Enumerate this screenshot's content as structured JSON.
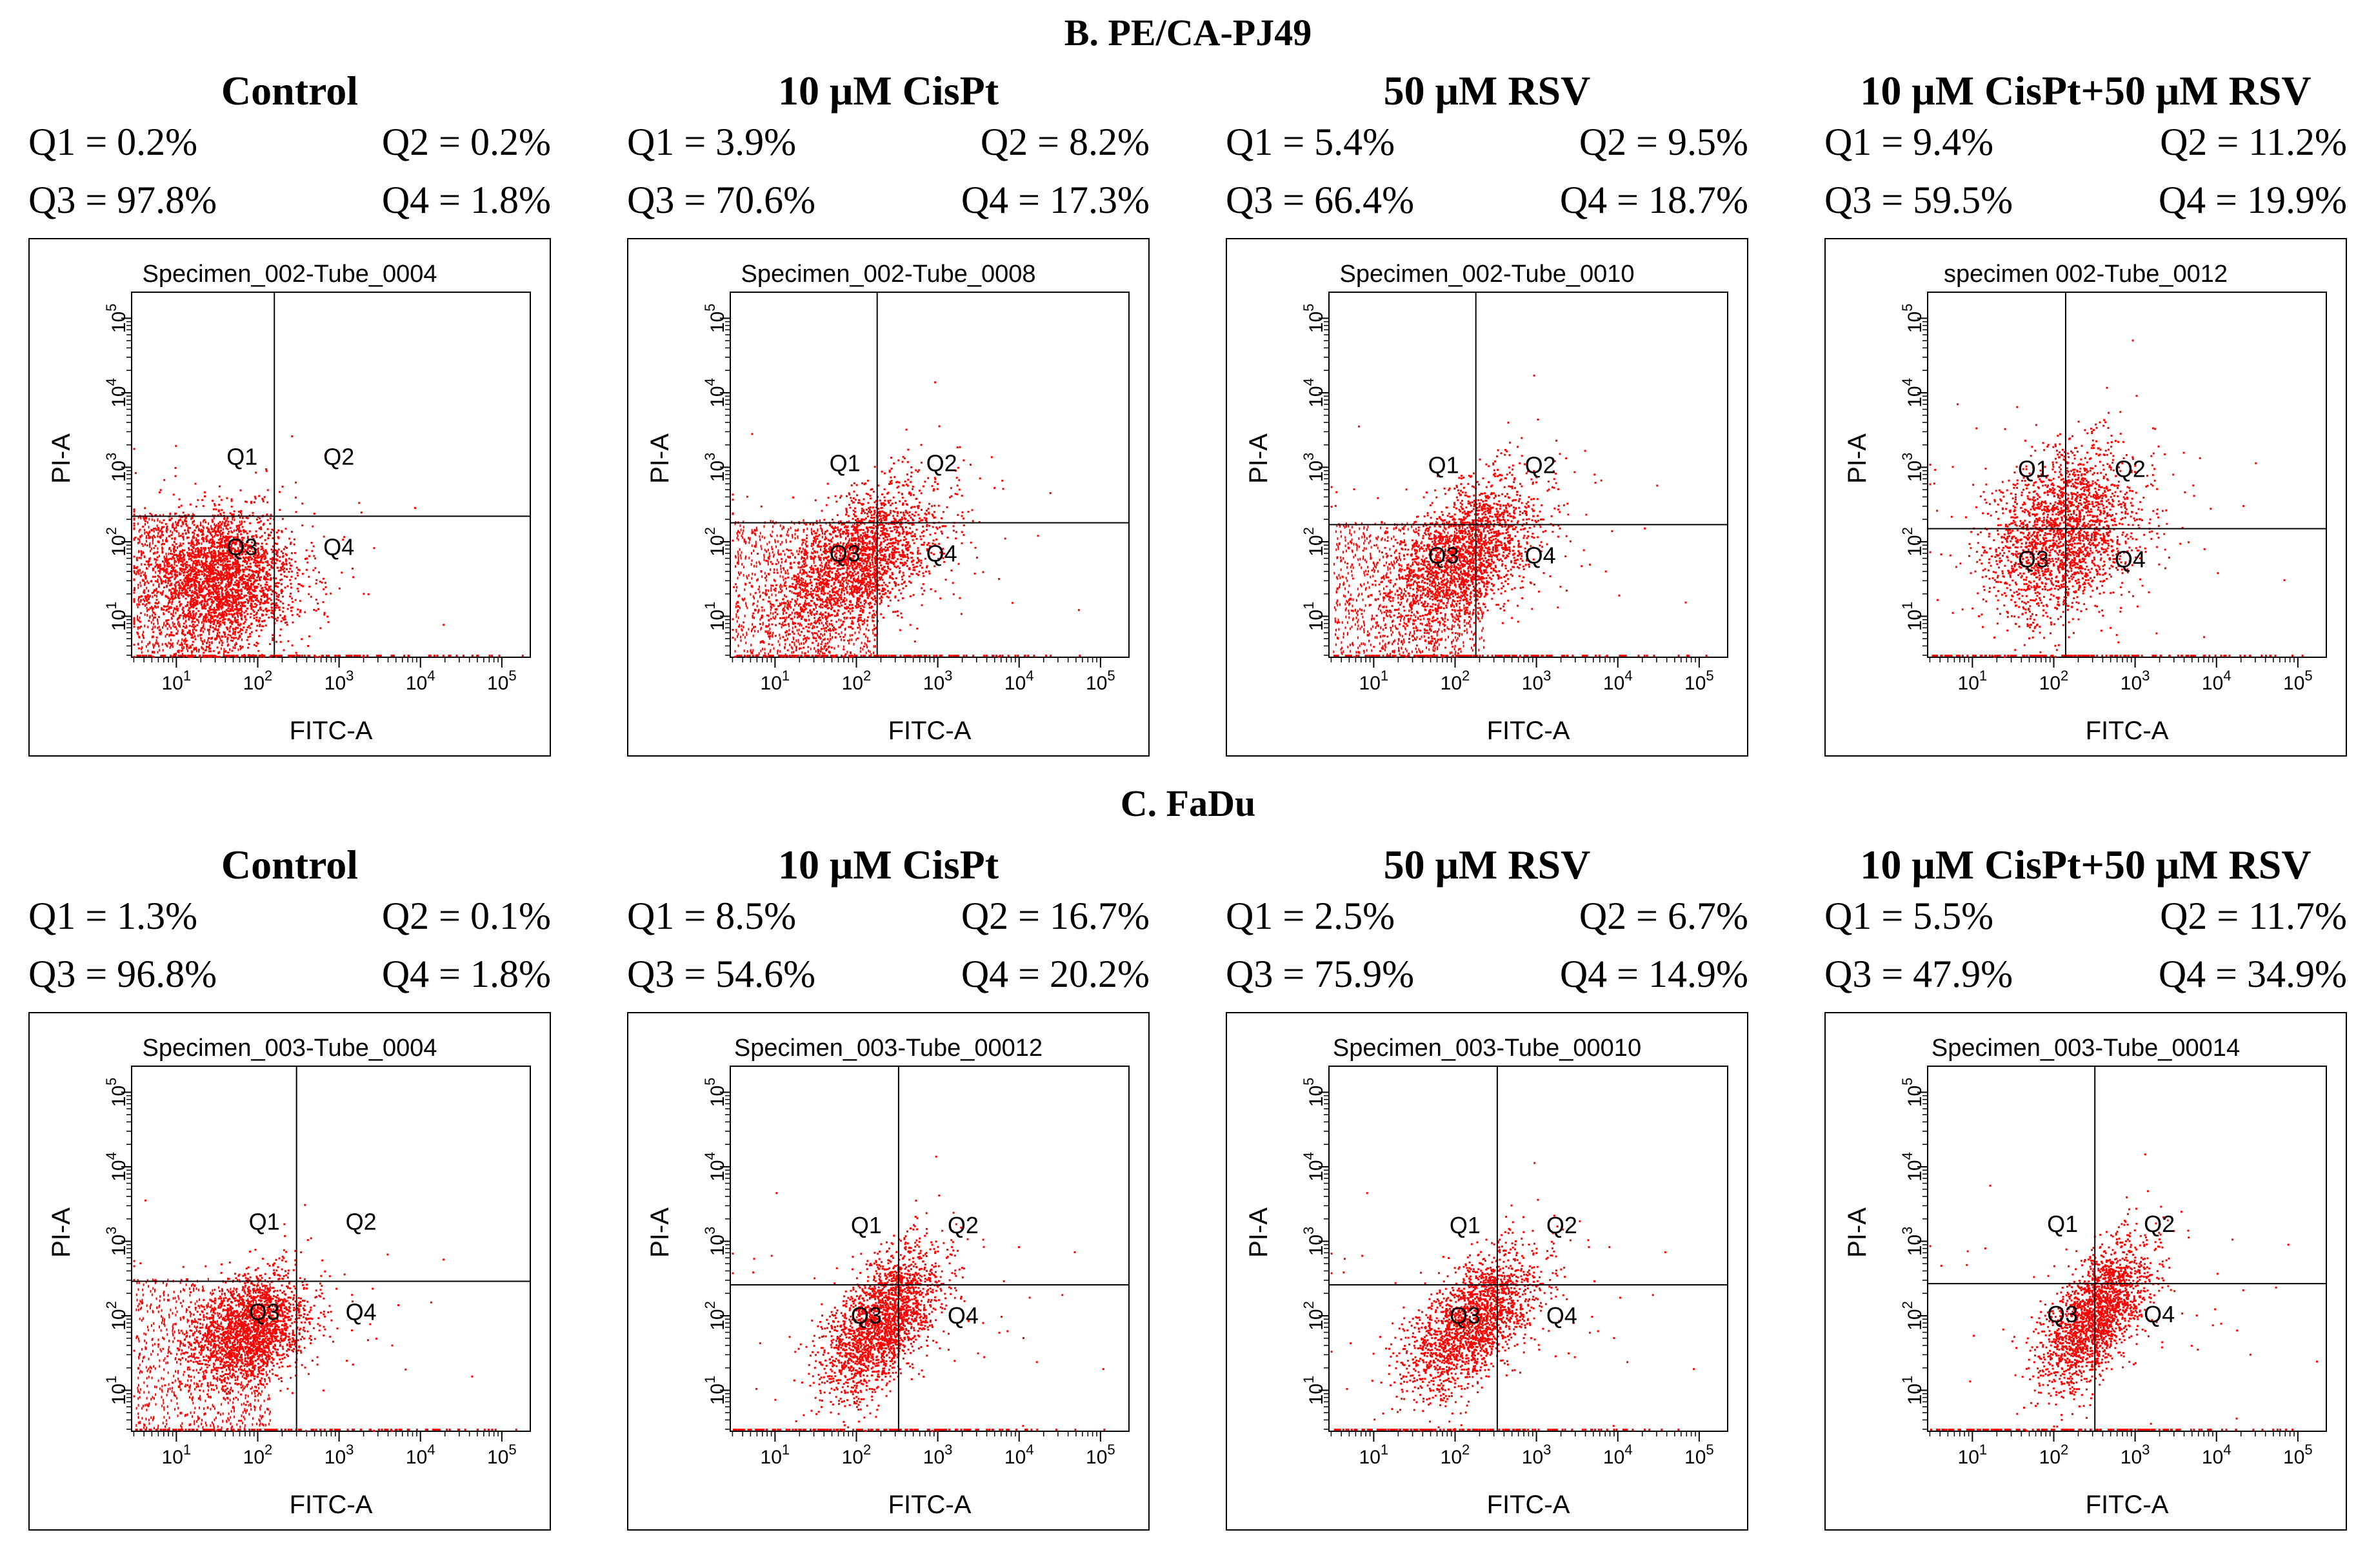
{
  "sections": [
    {
      "title": "B. PE/CA-PJ49",
      "panels": [
        {
          "treatment": "Control",
          "q1": "Q1 = 0.2%",
          "q2": "Q2 = 0.2%",
          "q3": "Q3 = 97.8%",
          "q4": "Q4 = 1.8%",
          "specimen": "Specimen_002-Tube_0004"
        },
        {
          "treatment": "10 μM CisPt",
          "q1": "Q1 = 3.9%",
          "q2": "Q2 = 8.2%",
          "q3": "Q3 = 70.6%",
          "q4": "Q4 = 17.3%",
          "specimen": "Specimen_002-Tube_0008"
        },
        {
          "treatment": "50 μM RSV",
          "q1": "Q1 = 5.4%",
          "q2": "Q2 = 9.5%",
          "q3": "Q3 = 66.4%",
          "q4": "Q4 = 18.7%",
          "specimen": "Specimen_002-Tube_0010"
        },
        {
          "treatment": "10 μM CisPt+50 μM RSV",
          "q1": "Q1 = 9.4%",
          "q2": "Q2 = 11.2%",
          "q3": "Q3 = 59.5%",
          "q4": "Q4 = 19.9%",
          "specimen": "specimen 002-Tube_0012"
        }
      ]
    },
    {
      "title": "C. FaDu",
      "panels": [
        {
          "treatment": "Control",
          "q1": "Q1 = 1.3%",
          "q2": "Q2 = 0.1%",
          "q3": "Q3 = 96.8%",
          "q4": "Q4 = 1.8%",
          "specimen": "Specimen_003-Tube_0004"
        },
        {
          "treatment": "10 μM CisPt",
          "q1": "Q1 = 8.5%",
          "q2": "Q2 = 16.7%",
          "q3": "Q3 = 54.6%",
          "q4": "Q4 = 20.2%",
          "specimen": "Specimen_003-Tube_00012"
        },
        {
          "treatment": "50 μM RSV",
          "q1": "Q1 = 2.5%",
          "q2": "Q2 = 6.7%",
          "q3": "Q3 = 75.9%",
          "q4": "Q4 = 14.9%",
          "specimen": "Specimen_003-Tube_00010"
        },
        {
          "treatment": "10 μM CisPt+50 μM RSV",
          "q1": "Q1 = 5.5%",
          "q2": "Q2 = 11.7%",
          "q3": "Q3 = 47.9%",
          "q4": "Q4 = 34.9%",
          "specimen": "Specimen_003-Tube_00014"
        }
      ]
    }
  ],
  "chart_data": {
    "type": "scatter",
    "xlabel": "FITC-A",
    "ylabel": "PI-A",
    "x_ticks": [
      "10^1",
      "10^2",
      "10^3",
      "10^4",
      "10^5"
    ],
    "y_ticks": [
      "10^1",
      "10^2",
      "10^3",
      "10^4",
      "10^5"
    ],
    "quadrant_labels": [
      "Q1",
      "Q2",
      "Q3",
      "Q4"
    ],
    "x_scale": "log",
    "y_scale": "log",
    "point_color": "#ff0000",
    "gates": [
      {
        "x": 160,
        "y": 220
      },
      {
        "x": 180,
        "y": 180
      },
      {
        "x": 180,
        "y": 170
      },
      {
        "x": 140,
        "y": 150
      },
      {
        "x": 300,
        "y": 290
      },
      {
        "x": 330,
        "y": 260
      },
      {
        "x": 330,
        "y": 260
      },
      {
        "x": 320,
        "y": 270
      }
    ]
  }
}
